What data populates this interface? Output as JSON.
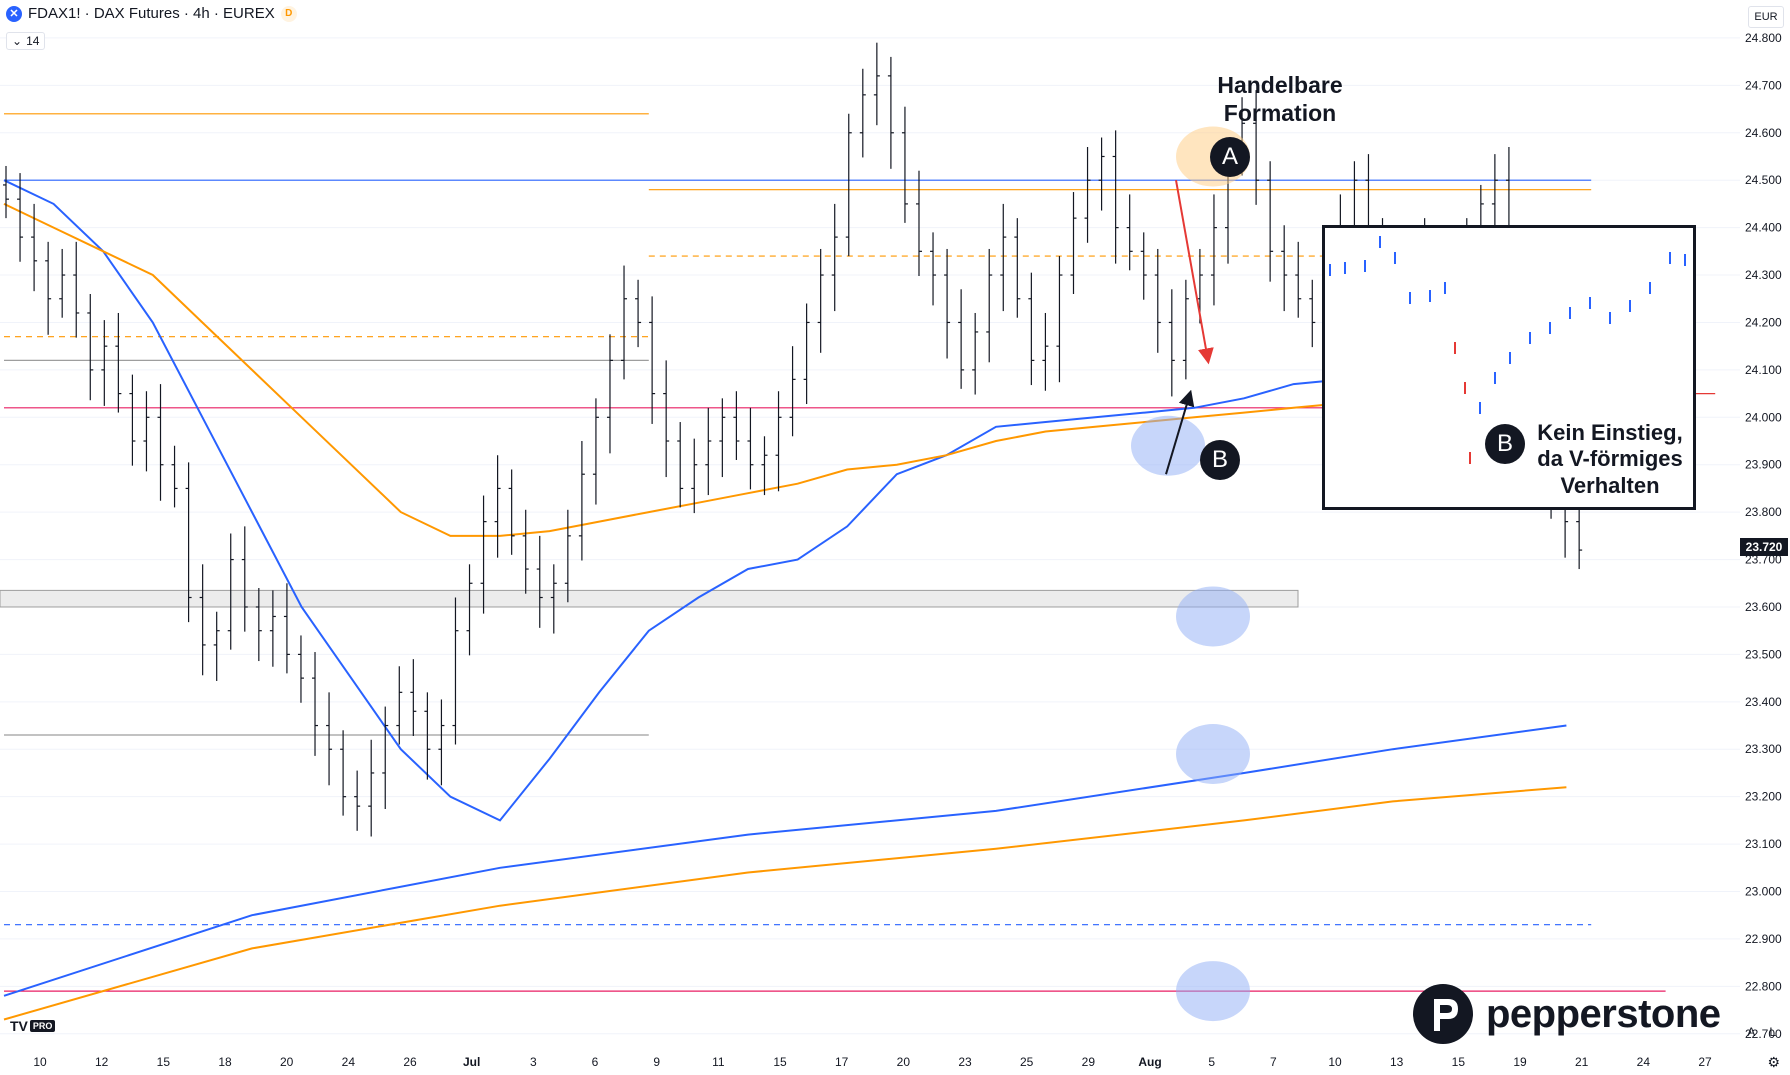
{
  "header": {
    "symbol_icon": "x-circle-icon",
    "title": "FDAX1! · DAX Futures · 4h · EUREX",
    "badge": "D",
    "indicator_value": "14",
    "currency": "EUR"
  },
  "price_label": "23.720",
  "annotations": {
    "a_text": "Handelbare Formation",
    "a_label": "A",
    "b_label": "B",
    "inset_text": "Kein Einstieg, da V-förmiges Verhalten",
    "inset_label": "B"
  },
  "brand": {
    "name": "pepperstone",
    "icon": "pepperstone-p-logo-icon"
  },
  "tradingview": {
    "logo": "TV",
    "pro": "PRO"
  },
  "bottom_buttons": {
    "auto": "A",
    "log": "L",
    "settings_icon": "gear-icon"
  },
  "colors": {
    "blue": "#2962ff",
    "orange": "#ff9800",
    "red": "#e53935",
    "pink": "#e91e63",
    "gray": "#9e9e9e",
    "candle": "#131722"
  },
  "chart_data": {
    "type": "ohlc",
    "title": "FDAX1! · DAX Futures · 4h · EUREX",
    "y_axis": {
      "ticks": [
        22.7,
        22.8,
        22.9,
        23.0,
        23.1,
        23.2,
        23.3,
        23.4,
        23.5,
        23.6,
        23.7,
        23.8,
        23.9,
        24.0,
        24.1,
        24.2,
        24.3,
        24.4,
        24.5,
        24.6,
        24.7,
        24.8
      ],
      "tick_labels": [
        "22.700",
        "22.800",
        "22.900",
        "23.000",
        "23.100",
        "23.200",
        "23.300",
        "23.400",
        "23.500",
        "23.600",
        "23.700",
        "23.800",
        "23.900",
        "24.000",
        "24.100",
        "24.200",
        "24.300",
        "24.400",
        "24.500",
        "24.600",
        "24.700",
        "24.800"
      ],
      "range": [
        22.67,
        24.88
      ]
    },
    "x_axis": {
      "tick_labels": [
        "10",
        "12",
        "15",
        "18",
        "20",
        "24",
        "26",
        "Jul",
        "3",
        "6",
        "9",
        "11",
        "15",
        "17",
        "20",
        "23",
        "25",
        "29",
        "Aug",
        "5",
        "7",
        "10",
        "13",
        "15",
        "19",
        "21",
        "24",
        "27"
      ],
      "bold_labels": [
        "Jul",
        "Aug"
      ]
    },
    "last_price": 23.72,
    "series": [
      {
        "name": "price",
        "style": "ohlc-bars",
        "close_path": [
          24.46,
          24.38,
          24.33,
          24.25,
          24.3,
          24.22,
          24.1,
          24.15,
          24.05,
          23.95,
          24.0,
          23.9,
          23.85,
          23.62,
          23.52,
          23.55,
          23.7,
          23.6,
          23.55,
          23.58,
          23.5,
          23.45,
          23.35,
          23.3,
          23.2,
          23.18,
          23.25,
          23.35,
          23.42,
          23.38,
          23.3,
          23.35,
          23.55,
          23.65,
          23.78,
          23.85,
          23.75,
          23.68,
          23.62,
          23.65,
          23.75,
          23.88,
          24.0,
          24.12,
          24.25,
          24.2,
          24.05,
          23.95,
          23.85,
          23.9,
          23.95,
          24.0,
          23.95,
          23.9,
          23.92,
          24.0,
          24.08,
          24.2,
          24.3,
          24.38,
          24.6,
          24.68,
          24.72,
          24.6,
          24.45,
          24.35,
          24.3,
          24.2,
          24.1,
          24.18,
          24.3,
          24.38,
          24.25,
          24.12,
          24.15,
          24.3,
          24.42,
          24.5,
          24.55,
          24.4,
          24.35,
          24.3,
          24.2,
          24.12,
          24.25,
          24.3,
          24.4,
          24.55,
          24.62,
          24.5,
          24.35,
          24.3,
          24.25,
          24.2,
          24.3,
          24.4,
          24.5,
          24.35,
          24.05,
          24.15,
          24.3,
          24.35,
          24.3,
          24.28,
          24.35,
          24.45,
          24.5,
          24.3,
          24.15,
          24.05,
          23.85,
          23.78,
          23.72
        ]
      },
      {
        "name": "blue-ema",
        "color": "#2962ff",
        "points": [
          [
            0,
            24.5
          ],
          [
            2,
            24.45
          ],
          [
            4,
            24.35
          ],
          [
            6,
            24.2
          ],
          [
            8,
            24.0
          ],
          [
            10,
            23.8
          ],
          [
            12,
            23.6
          ],
          [
            14,
            23.45
          ],
          [
            16,
            23.3
          ],
          [
            18,
            23.2
          ],
          [
            20,
            23.15
          ],
          [
            22,
            23.28
          ],
          [
            24,
            23.42
          ],
          [
            26,
            23.55
          ],
          [
            28,
            23.62
          ],
          [
            30,
            23.68
          ],
          [
            32,
            23.7
          ],
          [
            34,
            23.77
          ],
          [
            36,
            23.88
          ],
          [
            38,
            23.92
          ],
          [
            40,
            23.98
          ],
          [
            42,
            23.99
          ],
          [
            44,
            24.0
          ],
          [
            46,
            24.01
          ],
          [
            48,
            24.02
          ],
          [
            50,
            24.04
          ],
          [
            52,
            24.07
          ],
          [
            54,
            24.08
          ],
          [
            56,
            24.09
          ],
          [
            58,
            24.1
          ],
          [
            60,
            24.11
          ],
          [
            62,
            24.12
          ],
          [
            63,
            24.11
          ]
        ]
      },
      {
        "name": "orange-ema",
        "color": "#ff9800",
        "points": [
          [
            0,
            24.45
          ],
          [
            2,
            24.4
          ],
          [
            4,
            24.35
          ],
          [
            6,
            24.3
          ],
          [
            8,
            24.2
          ],
          [
            10,
            24.1
          ],
          [
            12,
            24.0
          ],
          [
            14,
            23.9
          ],
          [
            16,
            23.8
          ],
          [
            18,
            23.75
          ],
          [
            20,
            23.75
          ],
          [
            22,
            23.76
          ],
          [
            24,
            23.78
          ],
          [
            26,
            23.8
          ],
          [
            28,
            23.82
          ],
          [
            30,
            23.84
          ],
          [
            32,
            23.86
          ],
          [
            34,
            23.89
          ],
          [
            36,
            23.9
          ],
          [
            38,
            23.92
          ],
          [
            40,
            23.95
          ],
          [
            42,
            23.97
          ],
          [
            44,
            23.98
          ],
          [
            46,
            23.99
          ],
          [
            48,
            24.0
          ],
          [
            50,
            24.01
          ],
          [
            52,
            24.02
          ],
          [
            54,
            24.03
          ],
          [
            56,
            24.04
          ],
          [
            58,
            24.05
          ],
          [
            60,
            24.05
          ],
          [
            62,
            24.04
          ],
          [
            63,
            24.03
          ]
        ]
      },
      {
        "name": "blue-ema-long",
        "color": "#2962ff",
        "points": [
          [
            0,
            22.78
          ],
          [
            10,
            22.95
          ],
          [
            20,
            23.05
          ],
          [
            30,
            23.12
          ],
          [
            40,
            23.17
          ],
          [
            50,
            23.25
          ],
          [
            56,
            23.3
          ],
          [
            63,
            23.35
          ]
        ]
      },
      {
        "name": "orange-ema-long",
        "color": "#ff9800",
        "points": [
          [
            0,
            22.73
          ],
          [
            10,
            22.88
          ],
          [
            20,
            22.97
          ],
          [
            30,
            23.04
          ],
          [
            40,
            23.09
          ],
          [
            50,
            23.15
          ],
          [
            56,
            23.19
          ],
          [
            63,
            23.22
          ]
        ]
      }
    ],
    "horizontal_levels": [
      {
        "price": 24.64,
        "color": "#ff9800",
        "style": "solid",
        "from": 0,
        "to": 26
      },
      {
        "price": 24.5,
        "color": "#2962ff",
        "style": "solid",
        "from": 0,
        "to": 64
      },
      {
        "price": 24.48,
        "color": "#ff9800",
        "style": "solid",
        "from": 26,
        "to": 64
      },
      {
        "price": 24.34,
        "color": "#ff9800",
        "style": "dashed",
        "from": 26,
        "to": 64
      },
      {
        "price": 24.17,
        "color": "#ff9800",
        "style": "dashed",
        "from": 0,
        "to": 26
      },
      {
        "price": 24.12,
        "color": "#9e9e9e",
        "style": "solid",
        "from": 0,
        "to": 26
      },
      {
        "price": 24.02,
        "color": "#e91e63",
        "style": "solid",
        "from": 0,
        "to": 64
      },
      {
        "price": 24.05,
        "color": "#e53935",
        "style": "solid",
        "from": 64,
        "to": 69
      },
      {
        "price": 23.33,
        "color": "#9e9e9e",
        "style": "solid",
        "from": 0,
        "to": 26
      },
      {
        "price": 22.93,
        "color": "#2962ff",
        "style": "dashed",
        "from": 0,
        "to": 64
      },
      {
        "price": 22.79,
        "color": "#e91e63",
        "style": "solid",
        "from": 0,
        "to": 67
      }
    ],
    "zones": [
      {
        "from_price": 23.6,
        "to_price": 23.635,
        "color": "#e0e0e0"
      }
    ],
    "target_circles": [
      24.55,
      23.94,
      23.58,
      23.29,
      22.79
    ]
  }
}
